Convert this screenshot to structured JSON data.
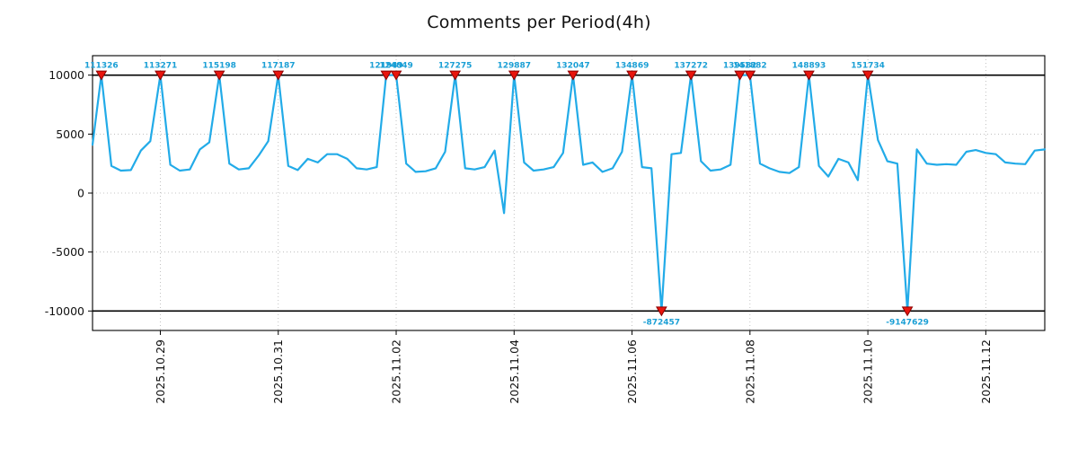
{
  "title": "Comments per Period(4h)",
  "colors": {
    "line": "#22abe8",
    "annotation": "#1a9fd5",
    "marker_fill": "#e8150d",
    "marker_edge": "#8b0000",
    "grid": "#b3b3b3",
    "axis": "#000000",
    "tick_text": "#111111"
  },
  "chart_data": {
    "type": "line",
    "title": "Comments per Period(4h)",
    "x_unit": "days since 2025-10-28 00:00, sampled every 4h",
    "ylim": [
      -11650,
      11650
    ],
    "xlim": [
      -0.15,
      16.0
    ],
    "clip_value": 10000,
    "grid": true,
    "yticks": [
      {
        "v": 10000,
        "label": "10000"
      },
      {
        "v": 5000,
        "label": "5000"
      },
      {
        "v": 0,
        "label": "0"
      },
      {
        "v": -5000,
        "label": "-5000"
      },
      {
        "v": -10000,
        "label": "-10000"
      }
    ],
    "xticks": [
      {
        "t": 1,
        "label": "2025.10.29"
      },
      {
        "t": 3,
        "label": "2025.10.31"
      },
      {
        "t": 5,
        "label": "2025.11.02"
      },
      {
        "t": 7,
        "label": "2025.11.04"
      },
      {
        "t": 9,
        "label": "2025.11.06"
      },
      {
        "t": 11,
        "label": "2025.11.08"
      },
      {
        "t": 13,
        "label": "2025.11.10"
      },
      {
        "t": 15,
        "label": "2025.11.12"
      }
    ],
    "points": [
      [
        -0.15,
        4100
      ],
      [
        0,
        10000
      ],
      [
        0.17,
        2300
      ],
      [
        0.33,
        1900
      ],
      [
        0.5,
        1950
      ],
      [
        0.67,
        3600
      ],
      [
        0.83,
        4400
      ],
      [
        1,
        10000
      ],
      [
        1.17,
        2400
      ],
      [
        1.33,
        1900
      ],
      [
        1.5,
        2000
      ],
      [
        1.67,
        3700
      ],
      [
        1.83,
        4300
      ],
      [
        2,
        10000
      ],
      [
        2.17,
        2500
      ],
      [
        2.33,
        2000
      ],
      [
        2.5,
        2100
      ],
      [
        2.67,
        3200
      ],
      [
        2.83,
        4400
      ],
      [
        3,
        10000
      ],
      [
        3.17,
        2300
      ],
      [
        3.33,
        1950
      ],
      [
        3.5,
        2900
      ],
      [
        3.67,
        2600
      ],
      [
        3.83,
        3300
      ],
      [
        4,
        3300
      ],
      [
        4.17,
        2900
      ],
      [
        4.33,
        2100
      ],
      [
        4.5,
        2000
      ],
      [
        4.67,
        2200
      ],
      [
        4.83,
        10000
      ],
      [
        5,
        10000
      ],
      [
        5.17,
        2500
      ],
      [
        5.33,
        1800
      ],
      [
        5.5,
        1850
      ],
      [
        5.67,
        2100
      ],
      [
        5.83,
        3500
      ],
      [
        6,
        10000
      ],
      [
        6.17,
        2100
      ],
      [
        6.33,
        2000
      ],
      [
        6.5,
        2200
      ],
      [
        6.67,
        3600
      ],
      [
        6.83,
        -1700
      ],
      [
        7,
        10000
      ],
      [
        7.17,
        2600
      ],
      [
        7.33,
        1900
      ],
      [
        7.5,
        2000
      ],
      [
        7.67,
        2200
      ],
      [
        7.83,
        3400
      ],
      [
        8,
        10000
      ],
      [
        8.17,
        2400
      ],
      [
        8.33,
        2600
      ],
      [
        8.5,
        1800
      ],
      [
        8.67,
        2100
      ],
      [
        8.83,
        3500
      ],
      [
        9,
        10000
      ],
      [
        9.17,
        2200
      ],
      [
        9.33,
        2100
      ],
      [
        9.5,
        -10000
      ],
      [
        9.67,
        3300
      ],
      [
        9.83,
        3400
      ],
      [
        10,
        10000
      ],
      [
        10.17,
        2700
      ],
      [
        10.33,
        1900
      ],
      [
        10.5,
        2000
      ],
      [
        10.67,
        2400
      ],
      [
        10.83,
        10000
      ],
      [
        11,
        10000
      ],
      [
        11.17,
        2500
      ],
      [
        11.33,
        2100
      ],
      [
        11.5,
        1800
      ],
      [
        11.67,
        1700
      ],
      [
        11.83,
        2200
      ],
      [
        12,
        10000
      ],
      [
        12.17,
        2300
      ],
      [
        12.33,
        1400
      ],
      [
        12.5,
        2900
      ],
      [
        12.67,
        2600
      ],
      [
        12.83,
        1100
      ],
      [
        13,
        10000
      ],
      [
        13.17,
        4500
      ],
      [
        13.33,
        2700
      ],
      [
        13.5,
        2500
      ],
      [
        13.67,
        -10000
      ],
      [
        13.83,
        3700
      ],
      [
        14,
        2500
      ],
      [
        14.17,
        2400
      ],
      [
        14.33,
        2450
      ],
      [
        14.5,
        2400
      ],
      [
        14.67,
        3500
      ],
      [
        14.83,
        3650
      ],
      [
        15,
        3400
      ],
      [
        15.17,
        3300
      ],
      [
        15.33,
        2600
      ],
      [
        15.5,
        2500
      ],
      [
        15.67,
        2450
      ],
      [
        15.83,
        3600
      ],
      [
        16,
        3700
      ]
    ],
    "peak_annotations": [
      {
        "t": 0,
        "label": "111326"
      },
      {
        "t": 1,
        "label": "113271"
      },
      {
        "t": 2,
        "label": "115198"
      },
      {
        "t": 3,
        "label": "117187"
      },
      {
        "t": 4.83,
        "label": "121949"
      },
      {
        "t": 5,
        "label": "124049"
      },
      {
        "t": 6,
        "label": "127275"
      },
      {
        "t": 7,
        "label": "129887"
      },
      {
        "t": 8,
        "label": "132047"
      },
      {
        "t": 9,
        "label": "134869"
      },
      {
        "t": 10,
        "label": "137272"
      },
      {
        "t": 10.83,
        "label": "139582"
      },
      {
        "t": 11,
        "label": "141882"
      },
      {
        "t": 12,
        "label": "148893"
      },
      {
        "t": 13,
        "label": "151734"
      }
    ],
    "trough_annotations": [
      {
        "t": 9.5,
        "label": "-872457"
      },
      {
        "t": 13.67,
        "label": "-9147629"
      }
    ],
    "legend": null
  }
}
